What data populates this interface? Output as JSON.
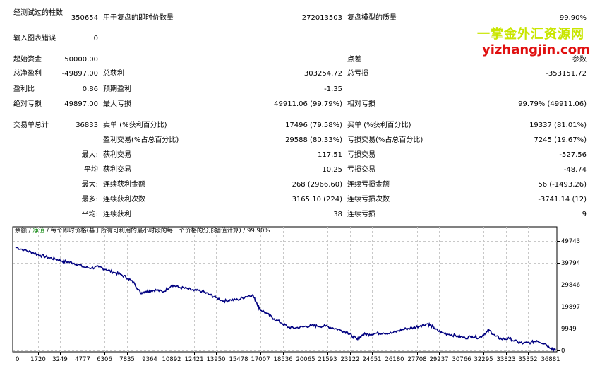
{
  "report": {
    "row_bars": {
      "label1": "经测试过的柱数",
      "value1": "350654",
      "label2": "用于复盘的即时价数量",
      "value2": "272013503",
      "label3": "复盘模型的质量",
      "value3": "99.90%"
    },
    "row_errors": {
      "label1": "输入图表错误",
      "value1": "0"
    },
    "row_deposit": {
      "label1": "起始资金",
      "value1": "50000.00",
      "label3": "点差",
      "value3": "参数"
    },
    "row_net": {
      "label1": "总净盈利",
      "value1": "-49897.00",
      "label2": "总获利",
      "value2": "303254.72",
      "label3": "总亏损",
      "value3": "-353151.72"
    },
    "row_pf": {
      "label1": "盈利比",
      "value1": "0.86",
      "label2": "预期盈利",
      "value2": "-1.35"
    },
    "row_dd": {
      "label1": "绝对亏损",
      "value1": "49897.00",
      "label2": "最大亏损",
      "value2": "49911.06 (99.79%)",
      "label3": "相对亏损",
      "value3": "99.79% (49911.06)"
    },
    "row_trades": {
      "label1": "交易单总计",
      "value1": "36833",
      "label2": "卖单 (%获利百分比)",
      "value2": "17496 (79.58%)",
      "label3": "买单 (%获利百分比)",
      "value3": "19337 (81.01%)"
    },
    "row_profit_trades": {
      "label2": "盈利交易(%占总百分比)",
      "value2": "29588 (80.33%)",
      "label3": "亏损交易(%占总百分比)",
      "value3": "7245 (19.67%)"
    },
    "row_largest": {
      "label1": "最大:",
      "label2": "获利交易",
      "value2": "117.51",
      "label3": "亏损交易",
      "value3": "-527.56"
    },
    "row_average": {
      "label1": "平均",
      "label2": "获利交易",
      "value2": "10.25",
      "label3": "亏损交易",
      "value3": "-48.74"
    },
    "row_max_consec": {
      "label1": "最大:",
      "label2": "连续获利金额",
      "value2": "268 (2966.60)",
      "label3": "连续亏损金额",
      "value3": "56 (-1493.26)"
    },
    "row_max_consec2": {
      "label1": "最多:",
      "label2": "连续获利次数",
      "value2": "3165.10 (224)",
      "label3": "连续亏损次数",
      "value3": "-3741.14 (12)"
    },
    "row_avg_consec": {
      "label1": "平均:",
      "label2": "连续获利",
      "value2": "38",
      "label3": "连续亏损",
      "value3": "9"
    }
  },
  "watermark": {
    "line1": "一掌金外汇资源网",
    "line2": "yizhangjin.com"
  },
  "colors": {
    "balance_line": "#000080",
    "equity_label": "#008000",
    "grid": "#c8c8c8",
    "watermark_yellow": "#c9e600",
    "watermark_red": "#e01010"
  },
  "chart_data": {
    "type": "line",
    "legend": {
      "balance": "余额",
      "sep1": " / ",
      "equity": "净值",
      "sep2": " / ",
      "tick_text": "每个即时价格(基于所有可利用的最小时段的每一个价格的分形插值计算)",
      "sep3": " / ",
      "quality": "99.90%"
    },
    "x_ticks": [
      "0",
      "1720",
      "3249",
      "4777",
      "6306",
      "7835",
      "9364",
      "10892",
      "12421",
      "13950",
      "15478",
      "17007",
      "18536",
      "20065",
      "21593",
      "23122",
      "24651",
      "26180",
      "27708",
      "29237",
      "30766",
      "32295",
      "33823",
      "35352",
      "36881"
    ],
    "y_ticks": [
      "49743",
      "39794",
      "29846",
      "19897",
      "9949",
      "0"
    ],
    "xlim": [
      0,
      37600
    ],
    "ylim": [
      0,
      54000
    ],
    "series": [
      {
        "values": [
          [
            0,
            50000
          ],
          [
            600,
            48600
          ],
          [
            1200,
            47300
          ],
          [
            1720,
            46000
          ],
          [
            2300,
            44900
          ],
          [
            2800,
            44200
          ],
          [
            3249,
            43200
          ],
          [
            3700,
            42800
          ],
          [
            4200,
            42000
          ],
          [
            4777,
            40300
          ],
          [
            5300,
            39900
          ],
          [
            5800,
            40400
          ],
          [
            6306,
            39200
          ],
          [
            6800,
            37800
          ],
          [
            7300,
            36800
          ],
          [
            7835,
            35000
          ],
          [
            8300,
            32200
          ],
          [
            8700,
            27800
          ],
          [
            9100,
            28600
          ],
          [
            9364,
            29000
          ],
          [
            9800,
            29200
          ],
          [
            10300,
            28400
          ],
          [
            10892,
            31700
          ],
          [
            11400,
            30500
          ],
          [
            12000,
            29800
          ],
          [
            12421,
            28900
          ],
          [
            13000,
            28700
          ],
          [
            13500,
            27000
          ],
          [
            13950,
            25600
          ],
          [
            14500,
            23900
          ],
          [
            15000,
            24400
          ],
          [
            15478,
            24500
          ],
          [
            16000,
            26000
          ],
          [
            16500,
            26900
          ],
          [
            16800,
            23000
          ],
          [
            17007,
            20000
          ],
          [
            17500,
            17800
          ],
          [
            18000,
            15300
          ],
          [
            18536,
            13300
          ],
          [
            19000,
            11200
          ],
          [
            19500,
            10900
          ],
          [
            20065,
            11500
          ],
          [
            20600,
            12000
          ],
          [
            21000,
            11800
          ],
          [
            21593,
            11800
          ],
          [
            22100,
            10900
          ],
          [
            22600,
            9900
          ],
          [
            23122,
            8800
          ],
          [
            23400,
            7200
          ],
          [
            23800,
            5300
          ],
          [
            24200,
            7800
          ],
          [
            24651,
            7800
          ],
          [
            25100,
            8300
          ],
          [
            25600,
            8500
          ],
          [
            26180,
            8300
          ],
          [
            26700,
            9600
          ],
          [
            27200,
            10500
          ],
          [
            27708,
            11000
          ],
          [
            28200,
            12000
          ],
          [
            28700,
            13000
          ],
          [
            29000,
            11600
          ],
          [
            29237,
            10300
          ],
          [
            29700,
            8500
          ],
          [
            30200,
            7800
          ],
          [
            30766,
            7000
          ],
          [
            31300,
            6100
          ],
          [
            31800,
            6800
          ],
          [
            32295,
            6200
          ],
          [
            32700,
            8200
          ],
          [
            33000,
            9700
          ],
          [
            33400,
            7000
          ],
          [
            33823,
            5500
          ],
          [
            34400,
            5700
          ],
          [
            35000,
            3900
          ],
          [
            35352,
            3400
          ],
          [
            35900,
            3900
          ],
          [
            36300,
            4700
          ],
          [
            36881,
            3300
          ],
          [
            37300,
            1200
          ],
          [
            37600,
            300
          ]
        ]
      }
    ]
  }
}
